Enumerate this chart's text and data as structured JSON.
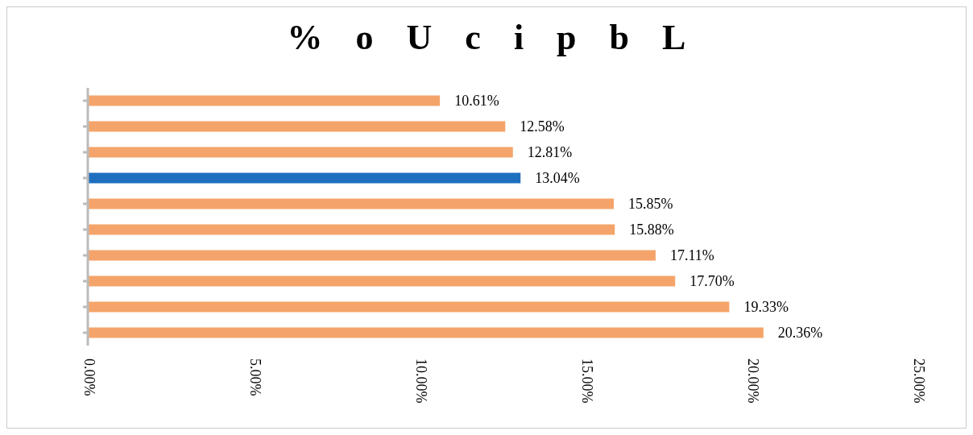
{
  "chart_data": {
    "type": "bar",
    "orientation": "horizontal",
    "title": "% o U c i p b L",
    "categories": [
      null,
      null,
      null,
      null,
      null,
      null,
      null,
      null,
      null,
      null
    ],
    "values": [
      10.61,
      12.58,
      12.81,
      13.04,
      15.85,
      15.88,
      17.11,
      17.7,
      19.33,
      20.36
    ],
    "colors": [
      "#f4a46a",
      "#f4a46a",
      "#f4a46a",
      "#1f6fbf",
      "#f4a46a",
      "#f4a46a",
      "#f4a46a",
      "#f4a46a",
      "#f4a46a",
      "#f4a46a"
    ],
    "value_labels": [
      "10.61%",
      "12.58%",
      "12.81%",
      "13.04%",
      "15.85%",
      "15.88%",
      "17.11%",
      "17.70%",
      "19.33%",
      "20.36%"
    ],
    "xlim": [
      0,
      25
    ],
    "xticks": [
      {
        "value": 0,
        "label": "0.00%"
      },
      {
        "value": 5,
        "label": "5.00%"
      },
      {
        "value": 10,
        "label": "10.00%"
      },
      {
        "value": 15,
        "label": "15.00%"
      },
      {
        "value": 20,
        "label": "20.00%"
      },
      {
        "value": 25,
        "label": "25.00%"
      }
    ],
    "grid": false
  }
}
